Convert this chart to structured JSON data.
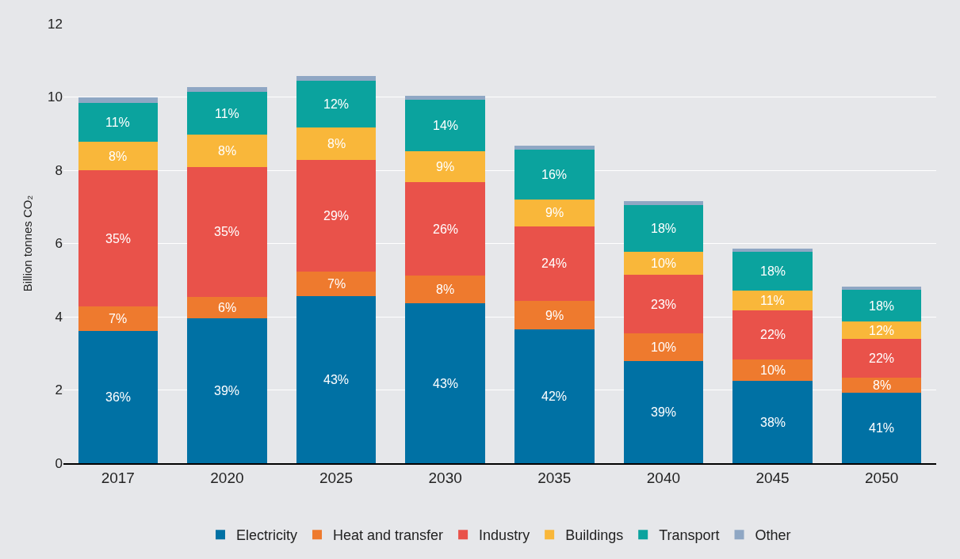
{
  "chart_data": {
    "type": "bar",
    "stacked": true,
    "ylabel": "Billion tonnes CO₂",
    "categories": [
      "2017",
      "2020",
      "2025",
      "2030",
      "2035",
      "2040",
      "2045",
      "2050"
    ],
    "ylim": [
      0,
      12
    ],
    "yticks": [
      0,
      2,
      4,
      6,
      8,
      10,
      12
    ],
    "grid": "y",
    "legend": "bottom",
    "series": [
      {
        "name": "Electricity",
        "color": "#0071a4",
        "values": [
          3.62,
          3.95,
          4.56,
          4.36,
          3.65,
          2.78,
          2.24,
          1.93
        ]
      },
      {
        "name": "Heat and transfer",
        "color": "#ee7a2e",
        "values": [
          0.66,
          0.59,
          0.67,
          0.76,
          0.78,
          0.76,
          0.6,
          0.41
        ]
      },
      {
        "name": "Industry",
        "color": "#e9524a",
        "values": [
          3.71,
          3.55,
          3.06,
          2.56,
          2.04,
          1.6,
          1.33,
          1.05
        ]
      },
      {
        "name": "Buildings",
        "color": "#f9b73a",
        "values": [
          0.78,
          0.89,
          0.87,
          0.83,
          0.73,
          0.63,
          0.54,
          0.47
        ]
      },
      {
        "name": "Transport",
        "color": "#0ba39e",
        "values": [
          1.06,
          1.15,
          1.28,
          1.41,
          1.37,
          1.28,
          1.06,
          0.87
        ]
      },
      {
        "name": "Other",
        "color": "#8fa7c4",
        "values": [
          0.15,
          0.13,
          0.13,
          0.11,
          0.11,
          0.11,
          0.09,
          0.09
        ]
      }
    ],
    "annotations": [
      "36%",
      "7%",
      "35%",
      "8%",
      "11%",
      "39%",
      "6%",
      "35%",
      "8%",
      "11%",
      "43%",
      "7%",
      "29%",
      "8%",
      "12%",
      "43%",
      "8%",
      "26%",
      "9%",
      "14%",
      "42%",
      "9%",
      "24%",
      "9%",
      "16%",
      "39%",
      "10%",
      "23%",
      "10%",
      "18%",
      "38%",
      "10%",
      "22%",
      "11%",
      "18%",
      "41%",
      "8%",
      "22%",
      "12%",
      "18%"
    ]
  }
}
